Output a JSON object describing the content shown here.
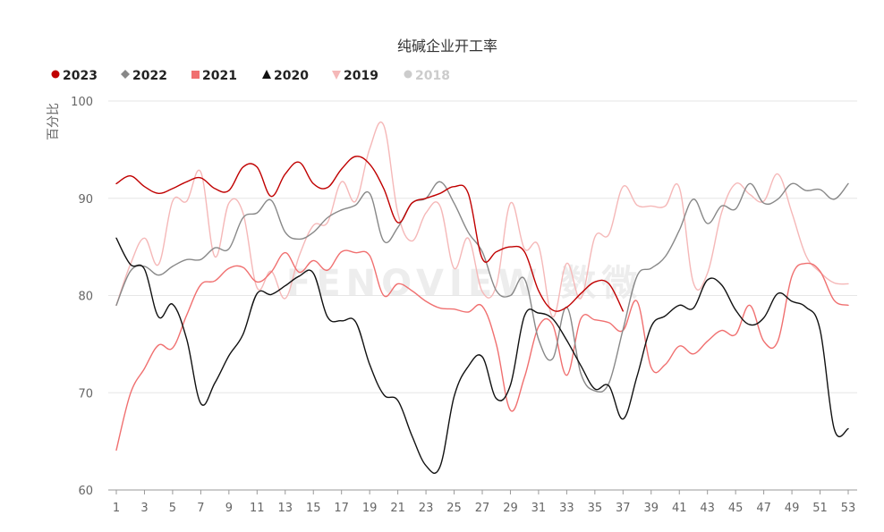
{
  "chart_data": {
    "type": "line",
    "title": "纯碱企业开工率",
    "ylabel": "百分比",
    "xlabel": "",
    "ylim": [
      60,
      100
    ],
    "yticks": [
      60,
      70,
      80,
      90,
      100
    ],
    "xticks": [
      1,
      3,
      5,
      7,
      9,
      11,
      13,
      15,
      17,
      19,
      21,
      23,
      25,
      27,
      29,
      31,
      33,
      35,
      37,
      39,
      41,
      43,
      45,
      47,
      49,
      51,
      53
    ],
    "grid": true,
    "legend_position": "top-left",
    "watermark": "FENOVIEW 数微",
    "series": [
      {
        "name": "2023",
        "color": "#c00000",
        "marker": "circle",
        "x": [
          1,
          2,
          3,
          4,
          5,
          6,
          7,
          8,
          9,
          10,
          11,
          12,
          13,
          14,
          15,
          16,
          17,
          18,
          19,
          20,
          21,
          22,
          23,
          24,
          25,
          26,
          27,
          28,
          29,
          30,
          31,
          32,
          33,
          34,
          35,
          36,
          37
        ],
        "values": [
          91.5,
          92.3,
          91.2,
          90.5,
          91.0,
          91.7,
          92.1,
          91.0,
          90.8,
          93.2,
          93.2,
          90.2,
          92.5,
          93.7,
          91.5,
          91.1,
          93.0,
          94.3,
          93.5,
          91.0,
          87.5,
          89.5,
          90.0,
          90.5,
          91.2,
          90.5,
          83.8,
          84.5,
          85.0,
          84.5,
          80.5,
          78.5,
          78.8,
          80.2,
          81.4,
          81.2,
          78.4
        ]
      },
      {
        "name": "2022",
        "color": "#888888",
        "marker": "diamond",
        "x": [
          1,
          2,
          3,
          4,
          5,
          6,
          7,
          8,
          9,
          10,
          11,
          12,
          13,
          14,
          15,
          16,
          17,
          18,
          19,
          20,
          21,
          22,
          23,
          24,
          25,
          26,
          27,
          28,
          29,
          30,
          31,
          32,
          33,
          34,
          35,
          36,
          37,
          38,
          39,
          40,
          41,
          42,
          43,
          44,
          45,
          46,
          47,
          48,
          49,
          50,
          51,
          52,
          53
        ],
        "values": [
          79.0,
          82.5,
          83.0,
          82.1,
          83.0,
          83.7,
          83.7,
          84.9,
          84.8,
          88.0,
          88.5,
          89.8,
          86.5,
          85.8,
          86.5,
          88.0,
          88.8,
          89.3,
          90.5,
          85.6,
          87.0,
          89.5,
          90.0,
          91.7,
          89.5,
          86.5,
          84.5,
          80.5,
          80.0,
          81.7,
          75.5,
          73.5,
          78.8,
          72.0,
          70.2,
          71.0,
          76.5,
          82.0,
          82.8,
          84.0,
          86.7,
          89.9,
          87.4,
          89.2,
          88.9,
          91.5,
          89.5,
          89.9,
          91.5,
          90.8,
          90.9,
          89.9,
          91.5
        ]
      },
      {
        "name": "2021",
        "color": "#f07070",
        "marker": "square",
        "x": [
          1,
          2,
          3,
          4,
          5,
          6,
          7,
          8,
          9,
          10,
          11,
          12,
          13,
          14,
          15,
          16,
          17,
          18,
          19,
          20,
          21,
          22,
          23,
          24,
          25,
          26,
          27,
          28,
          29,
          30,
          31,
          32,
          33,
          34,
          35,
          36,
          37,
          38,
          39,
          40,
          41,
          42,
          43,
          44,
          45,
          46,
          47,
          48,
          49,
          50,
          51,
          52,
          53
        ],
        "values": [
          64.1,
          69.9,
          72.5,
          74.9,
          74.6,
          78.0,
          81.1,
          81.5,
          82.8,
          82.9,
          81.4,
          82.4,
          84.4,
          82.4,
          83.6,
          82.6,
          84.5,
          84.4,
          84.1,
          80.0,
          81.2,
          80.5,
          79.4,
          78.7,
          78.6,
          78.3,
          78.9,
          75.0,
          68.2,
          71.6,
          76.8,
          77.0,
          71.8,
          77.6,
          77.5,
          77.2,
          76.4,
          79.4,
          72.6,
          72.9,
          74.8,
          74.0,
          75.3,
          76.4,
          76.0,
          79.0,
          75.3,
          75.3,
          82.0,
          83.3,
          82.5,
          79.5,
          79.0
        ]
      },
      {
        "name": "2020",
        "color": "#111111",
        "marker": "triangle",
        "x": [
          1,
          2,
          3,
          4,
          5,
          6,
          7,
          8,
          9,
          10,
          11,
          12,
          13,
          14,
          15,
          16,
          17,
          18,
          19,
          20,
          21,
          22,
          23,
          24,
          25,
          26,
          27,
          28,
          29,
          30,
          31,
          32,
          33,
          34,
          35,
          36,
          37,
          38,
          39,
          40,
          41,
          42,
          43,
          44,
          45,
          46,
          47,
          48,
          49,
          50,
          51,
          52,
          53
        ],
        "values": [
          85.9,
          83.2,
          82.7,
          77.8,
          79.1,
          75.5,
          68.9,
          71.0,
          73.8,
          76.0,
          80.2,
          80.1,
          81.0,
          82.0,
          82.3,
          77.8,
          77.4,
          77.3,
          72.9,
          69.8,
          69.2,
          65.6,
          62.5,
          62.4,
          69.6,
          72.7,
          73.7,
          69.4,
          70.8,
          77.9,
          78.2,
          77.6,
          75.4,
          72.8,
          70.4,
          70.7,
          67.3,
          71.7,
          76.8,
          77.9,
          79.0,
          78.7,
          81.6,
          81.1,
          78.5,
          77.0,
          77.7,
          80.2,
          79.4,
          78.8,
          76.5,
          66.3,
          66.3
        ]
      },
      {
        "name": "2019",
        "color": "#f5b8b8",
        "marker": "triangle-down",
        "x": [
          1,
          2,
          3,
          4,
          5,
          6,
          7,
          8,
          9,
          10,
          11,
          12,
          13,
          14,
          15,
          16,
          17,
          18,
          19,
          20,
          21,
          22,
          23,
          24,
          25,
          26,
          27,
          28,
          29,
          30,
          31,
          32,
          33,
          34,
          35,
          36,
          37,
          38,
          39,
          40,
          41,
          42,
          43,
          44,
          45,
          46,
          47,
          48,
          49,
          50,
          51,
          52,
          53
        ],
        "values": [
          79.0,
          83.2,
          85.9,
          83.2,
          89.7,
          89.7,
          92.7,
          84.0,
          89.5,
          88.5,
          80.8,
          82.5,
          79.7,
          84.1,
          87.2,
          87.5,
          91.7,
          89.7,
          95.1,
          97.5,
          88.5,
          85.6,
          88.5,
          89.2,
          82.8,
          85.9,
          80.4,
          81.0,
          89.5,
          84.8,
          85.1,
          77.8,
          83.3,
          79.7,
          86.0,
          86.3,
          91.2,
          89.3,
          89.2,
          89.2,
          91.1,
          81.3,
          82.3,
          88.5,
          91.5,
          90.4,
          89.7,
          92.5,
          88.5,
          84.1,
          82.4,
          81.3,
          81.2
        ]
      },
      {
        "name": "2018",
        "color": "#cccccc",
        "marker": "circle",
        "hidden": true,
        "x": [],
        "values": []
      }
    ]
  }
}
